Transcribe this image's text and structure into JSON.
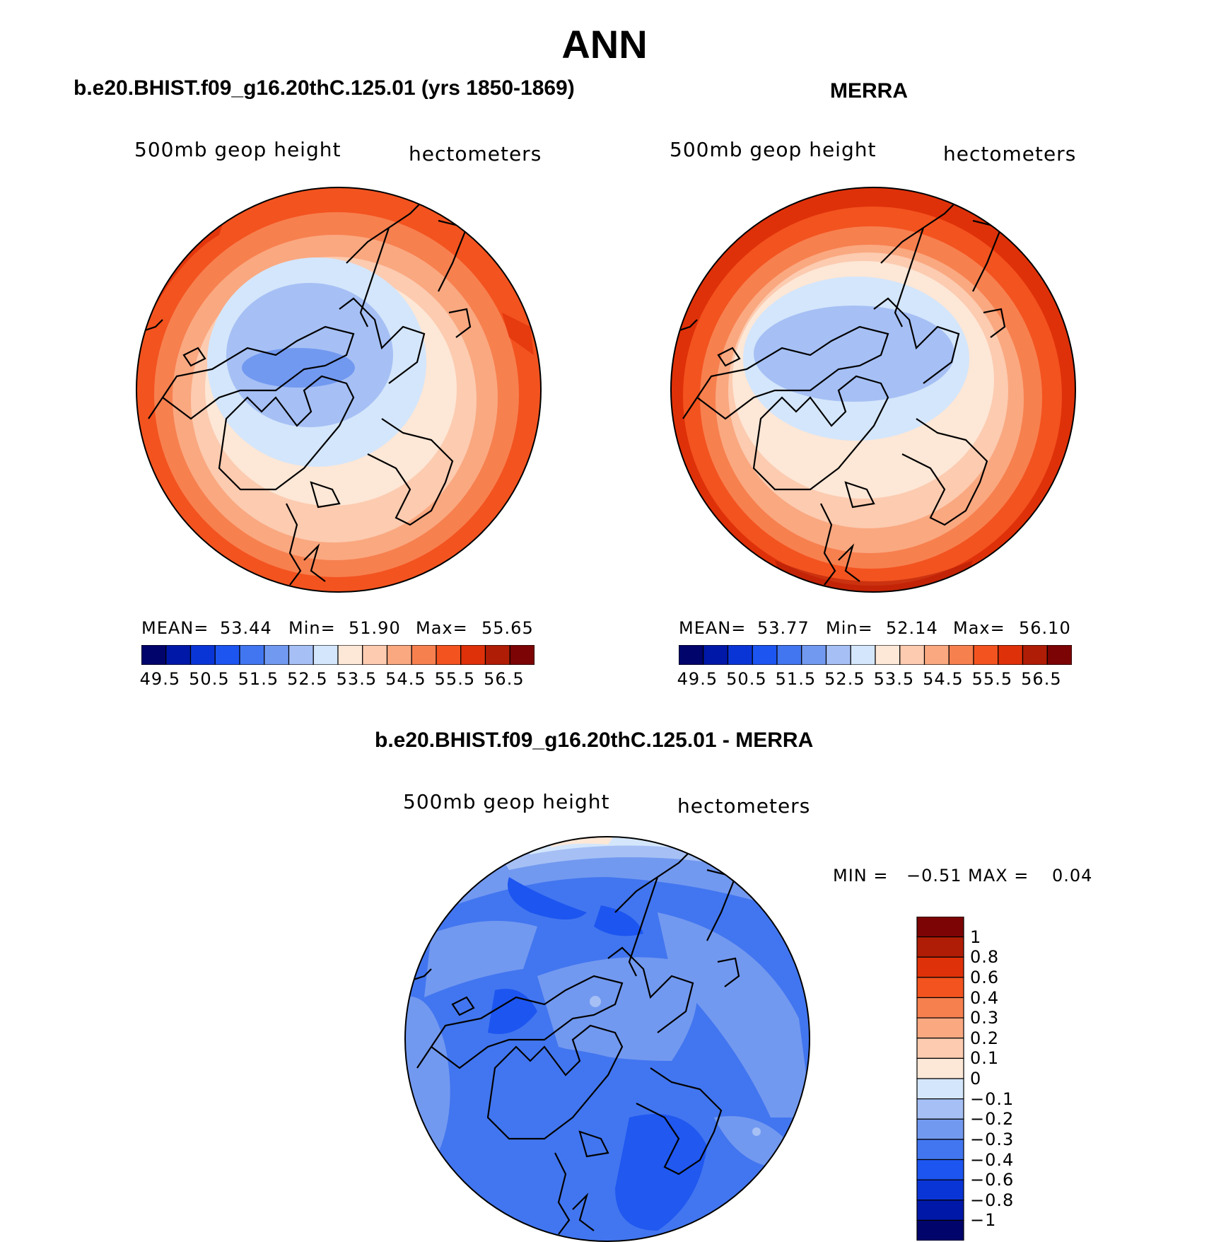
{
  "figure": {
    "title": "ANN",
    "colors": {
      "ocean_outline": "#000000",
      "coast": "#000000"
    }
  },
  "panels": {
    "model": {
      "title": "b.e20.BHIST.f09_g16.20thC.125.01 (yrs 1850-1869)",
      "left_label": "500mb geop height",
      "right_label": "hectometers",
      "stats": {
        "mean_label": "MEAN=",
        "mean": "53.44",
        "min_label": "Min=",
        "min": "51.90",
        "max_label": "Max=",
        "max": "55.65"
      }
    },
    "obs": {
      "title": "MERRA",
      "left_label": "500mb geop height",
      "right_label": "hectometers",
      "stats": {
        "mean_label": "MEAN=",
        "mean": "53.77",
        "min_label": "Min=",
        "min": "52.14",
        "max_label": "Max=",
        "max": "56.10"
      }
    },
    "diff": {
      "title": "b.e20.BHIST.f09_g16.20thC.125.01 - MERRA",
      "left_label": "500mb geop height",
      "right_label": "hectometers",
      "stats": {
        "min_label": "MIN =",
        "min": "−0.51",
        "max_label": "MAX =",
        "max": "0.04"
      }
    }
  },
  "colorbar_main": {
    "labels": [
      "49.5",
      "50.5",
      "51.5",
      "52.5",
      "53.5",
      "54.5",
      "55.5",
      "56.5"
    ],
    "colors": [
      "#00046b",
      "#0018a8",
      "#0a35d6",
      "#1d55f0",
      "#4276f0",
      "#7299f0",
      "#a6c0f5",
      "#d4e6fb",
      "#fde7d6",
      "#fccbb0",
      "#faa880",
      "#f7804f",
      "#f3531f",
      "#df3109",
      "#b01d06",
      "#7c0404"
    ]
  },
  "colorbar_diff": {
    "labels": [
      "1",
      "0.8",
      "0.6",
      "0.4",
      "0.3",
      "0.2",
      "0.1",
      "0",
      "−0.1",
      "−0.2",
      "−0.3",
      "−0.4",
      "−0.6",
      "−0.8",
      "−1"
    ],
    "colors": [
      "#7c0404",
      "#b01d06",
      "#df3109",
      "#f3531f",
      "#f7804f",
      "#faa880",
      "#fccbb0",
      "#fde7d6",
      "#d4e6fb",
      "#a6c0f5",
      "#7299f0",
      "#4276f0",
      "#1d55f0",
      "#0a35d6",
      "#0018a8",
      "#00046b"
    ]
  }
}
